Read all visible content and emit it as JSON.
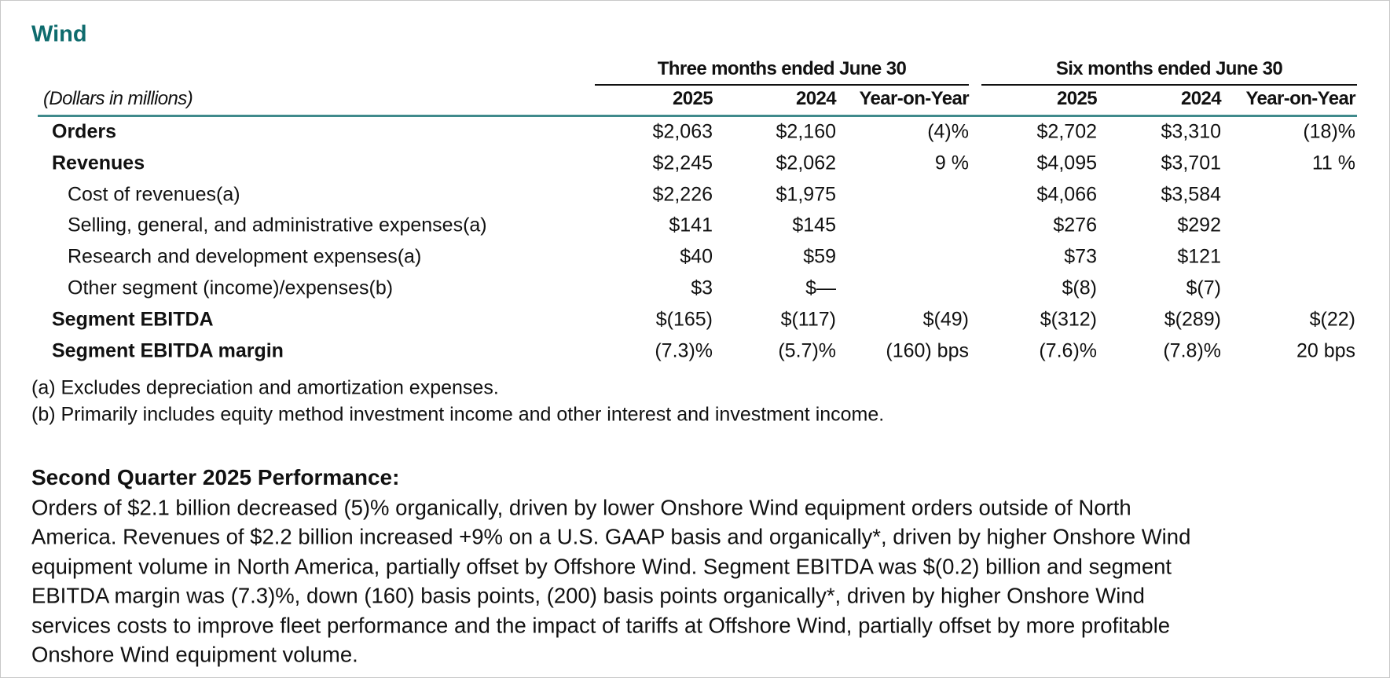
{
  "title": "Wind",
  "table": {
    "units": "(Dollars in millions)",
    "groups": [
      "Three months ended June 30",
      "Six months ended June 30"
    ],
    "columns": [
      "2025",
      "2024",
      "Year-on-Year",
      "2025",
      "2024",
      "Year-on-Year"
    ],
    "rows": [
      {
        "label": "Orders",
        "values": [
          "$2,063",
          "$2,160",
          "(4)%",
          "$2,702",
          "$3,310",
          "(18)%"
        ]
      },
      {
        "label": "Revenues",
        "values": [
          "$2,245",
          "$2,062",
          "9 %",
          "$4,095",
          "$3,701",
          "11 %"
        ]
      },
      {
        "label": "Cost of revenues(a)",
        "values": [
          "$2,226",
          "$1,975",
          null,
          "$4,066",
          "$3,584",
          null
        ]
      },
      {
        "label": "Selling, general, and administrative expenses(a)",
        "values": [
          "$141",
          "$145",
          null,
          "$276",
          "$292",
          null
        ]
      },
      {
        "label": "Research and development expenses(a)",
        "values": [
          "$40",
          "$59",
          null,
          "$73",
          "$121",
          null
        ]
      },
      {
        "label": "Other segment (income)/expenses(b)",
        "values": [
          "$3",
          "$—",
          null,
          "$(8)",
          "$(7)",
          null
        ]
      },
      {
        "label": "Segment EBITDA",
        "values": [
          "$(165)",
          "$(117)",
          "$(49)",
          "$(312)",
          "$(289)",
          "$(22)"
        ]
      },
      {
        "label": "Segment EBITDA margin",
        "values": [
          "(7.3)%",
          "(5.7)%",
          "(160) bps",
          "(7.6)%",
          "(7.8)%",
          "20 bps"
        ]
      }
    ]
  },
  "footnotes": [
    "(a) Excludes depreciation and amortization expenses.",
    "(b) Primarily includes equity method investment income and other interest and investment income."
  ],
  "section": {
    "heading": "Second Quarter 2025 Performance:",
    "lines": [
      "Orders of $2.1 billion decreased (5)% organically, driven by lower Onshore Wind equipment orders outside of North",
      "America. Revenues of $2.2 billion increased +9% on a U.S. GAAP basis and organically*, driven by higher Onshore Wind",
      "equipment volume in North America, partially offset by Offshore Wind. Segment EBITDA was $(0.2) billion and segment",
      "EBITDA margin was (7.3)%, down (160) basis points, (200) basis points organically*, driven by higher Onshore Wind",
      "services costs to improve fleet performance and the impact of tariffs at Offshore Wind, partially offset by more profitable",
      "Onshore Wind equipment volume."
    ]
  }
}
